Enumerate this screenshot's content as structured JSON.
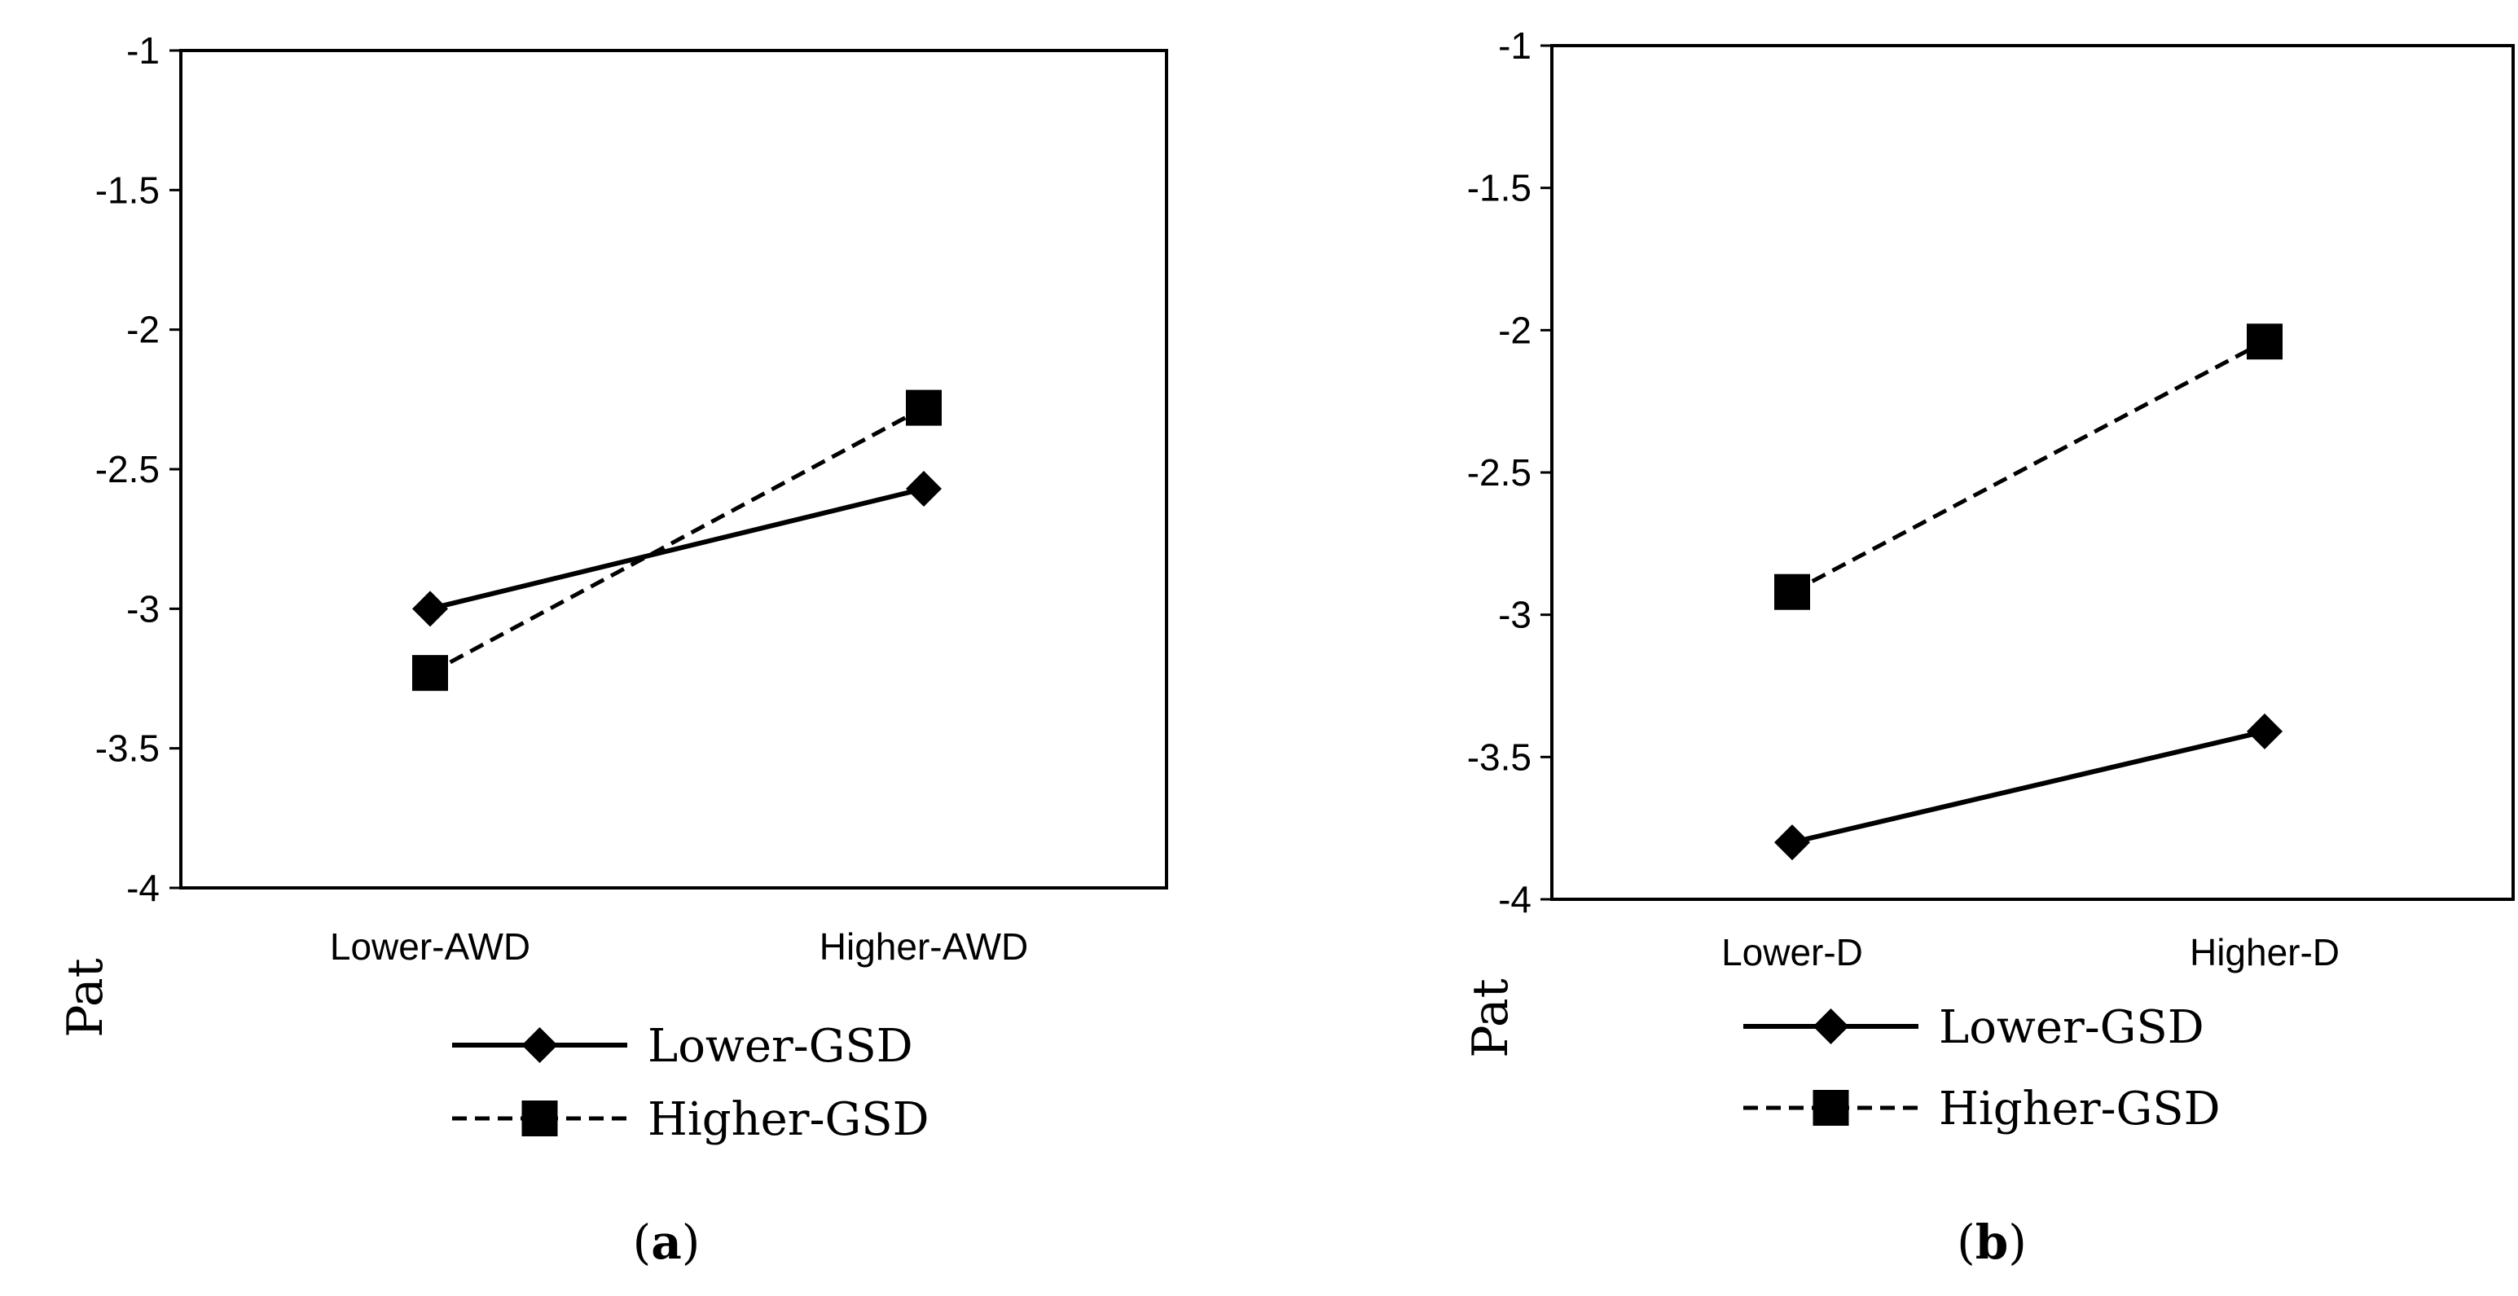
{
  "chart_data": [
    {
      "type": "line",
      "caption_letter": "a",
      "categories": [
        "Lower-AWD",
        "Higher-AWD"
      ],
      "ylabel": "Pat",
      "ylim": [
        -4,
        -1
      ],
      "yticks": [
        -1,
        -1.5,
        -2,
        -2.5,
        -3,
        -3.5,
        -4
      ],
      "ytick_labels": [
        "-1",
        "-1.5",
        "-2",
        "-2.5",
        "-3",
        "-3.5",
        "-4"
      ],
      "series": [
        {
          "name": "Lower-GSD",
          "values": [
            -3.0,
            -2.57
          ],
          "line": "solid",
          "marker": "diamond"
        },
        {
          "name": "Higher-GSD",
          "values": [
            -3.23,
            -2.28
          ],
          "line": "dashed",
          "marker": "square"
        }
      ]
    },
    {
      "type": "line",
      "caption_letter": "b",
      "categories": [
        "Lower-D",
        "Higher-D"
      ],
      "ylabel": "Pat",
      "ylim": [
        -4,
        -1
      ],
      "yticks": [
        -1,
        -1.5,
        -2,
        -2.5,
        -3,
        -3.5,
        -4
      ],
      "ytick_labels": [
        "-1",
        "-1.5",
        "-2",
        "-2.5",
        "-3",
        "-3.5",
        "-4"
      ],
      "series": [
        {
          "name": "Lower-GSD",
          "values": [
            -3.8,
            -3.41
          ],
          "line": "solid",
          "marker": "diamond"
        },
        {
          "name": "Higher-GSD",
          "values": [
            -2.92,
            -2.04
          ],
          "line": "dashed",
          "marker": "square"
        }
      ]
    }
  ],
  "colors": {
    "ink": "#000000",
    "background": "#ffffff"
  }
}
